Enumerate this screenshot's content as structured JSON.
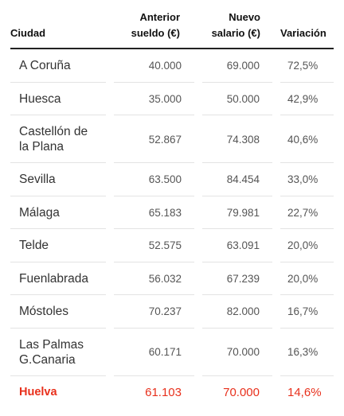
{
  "table": {
    "headers": {
      "city": "Ciudad",
      "previous_line1": "Anterior",
      "previous_line2": "sueldo (€)",
      "new_line1": "Nuevo",
      "new_line2": "salario (€)",
      "variation": "Variación"
    },
    "rows": [
      {
        "city_line1": "A Coruña",
        "city_line2": "",
        "previous": "40.000",
        "new": "69.000",
        "variation": "72,5%"
      },
      {
        "city_line1": "Huesca",
        "city_line2": "",
        "previous": "35.000",
        "new": "50.000",
        "variation": "42,9%"
      },
      {
        "city_line1": "Castellón de",
        "city_line2": "la Plana",
        "previous": "52.867",
        "new": "74.308",
        "variation": "40,6%"
      },
      {
        "city_line1": "Sevilla",
        "city_line2": "",
        "previous": "63.500",
        "new": "84.454",
        "variation": "33,0%"
      },
      {
        "city_line1": "Málaga",
        "city_line2": "",
        "previous": "65.183",
        "new": "79.981",
        "variation": "22,7%"
      },
      {
        "city_line1": "Telde",
        "city_line2": "",
        "previous": "52.575",
        "new": "63.091",
        "variation": "20,0%"
      },
      {
        "city_line1": "Fuenlabrada",
        "city_line2": "",
        "previous": "56.032",
        "new": "67.239",
        "variation": "20,0%"
      },
      {
        "city_line1": "Móstoles",
        "city_line2": "",
        "previous": "70.237",
        "new": "82.000",
        "variation": "16,7%"
      },
      {
        "city_line1": "Las Palmas",
        "city_line2": "G.Canaria",
        "previous": "60.171",
        "new": "70.000",
        "variation": "16,3%"
      },
      {
        "city_line1": "Huelva",
        "city_line2": "",
        "previous": "61.103",
        "new": "70.000",
        "variation": "14,6%"
      }
    ]
  },
  "colors": {
    "highlight": "#e8301c",
    "text": "#333333",
    "divider": "#e3e3e3"
  }
}
